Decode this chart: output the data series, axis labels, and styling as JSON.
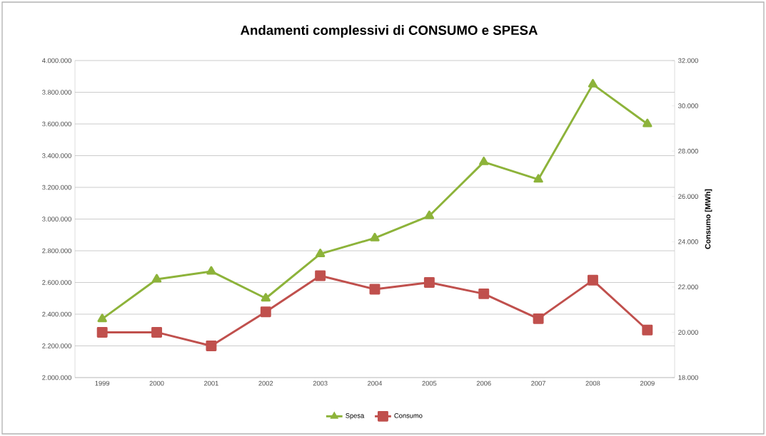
{
  "chart_data": {
    "type": "line",
    "title": "Andamenti complessivi di CONSUMO e SPESA",
    "y2label": "Consumo [MWh]",
    "categories": [
      "1999",
      "2000",
      "2001",
      "2002",
      "2003",
      "2004",
      "2005",
      "2006",
      "2007",
      "2008",
      "2009"
    ],
    "series": [
      {
        "name": "Spesa",
        "color": "#8db33a",
        "marker": "triangle",
        "values": [
          2370000,
          2620000,
          2670000,
          2500000,
          2780000,
          2880000,
          3020000,
          3360000,
          3250000,
          3850000,
          3600000
        ]
      },
      {
        "name": "Consumo",
        "color": "#c0504d",
        "marker": "square",
        "axis": "y2",
        "values": [
          20000,
          20000,
          19400,
          20900,
          22500,
          21900,
          22200,
          21700,
          20600,
          22300,
          20100
        ]
      }
    ],
    "ylim": [
      2000000,
      4000000
    ],
    "yticks": [
      {
        "value": 2000000,
        "label": "2.000.000"
      },
      {
        "value": 2200000,
        "label": "2.200.000"
      },
      {
        "value": 2400000,
        "label": "2.400.000"
      },
      {
        "value": 2600000,
        "label": "2.600.000"
      },
      {
        "value": 2800000,
        "label": "2.800.000"
      },
      {
        "value": 3000000,
        "label": "3.000.000"
      },
      {
        "value": 3200000,
        "label": "3.200.000"
      },
      {
        "value": 3400000,
        "label": "3.400.000"
      },
      {
        "value": 3600000,
        "label": "3.600.000"
      },
      {
        "value": 3800000,
        "label": "3.800.000"
      },
      {
        "value": 4000000,
        "label": "4.000.000"
      }
    ],
    "y2lim": [
      18000,
      32000
    ],
    "y2ticks": [
      {
        "value": 18000,
        "label": "18.000"
      },
      {
        "value": 20000,
        "label": "20.000"
      },
      {
        "value": 22000,
        "label": "22.000"
      },
      {
        "value": 24000,
        "label": "24.000"
      },
      {
        "value": 26000,
        "label": "26.000"
      },
      {
        "value": 28000,
        "label": "28.000"
      },
      {
        "value": 30000,
        "label": "30.000"
      },
      {
        "value": 32000,
        "label": "32.000"
      }
    ],
    "grid": "y",
    "legend": "bottom",
    "line_style": "solid"
  }
}
